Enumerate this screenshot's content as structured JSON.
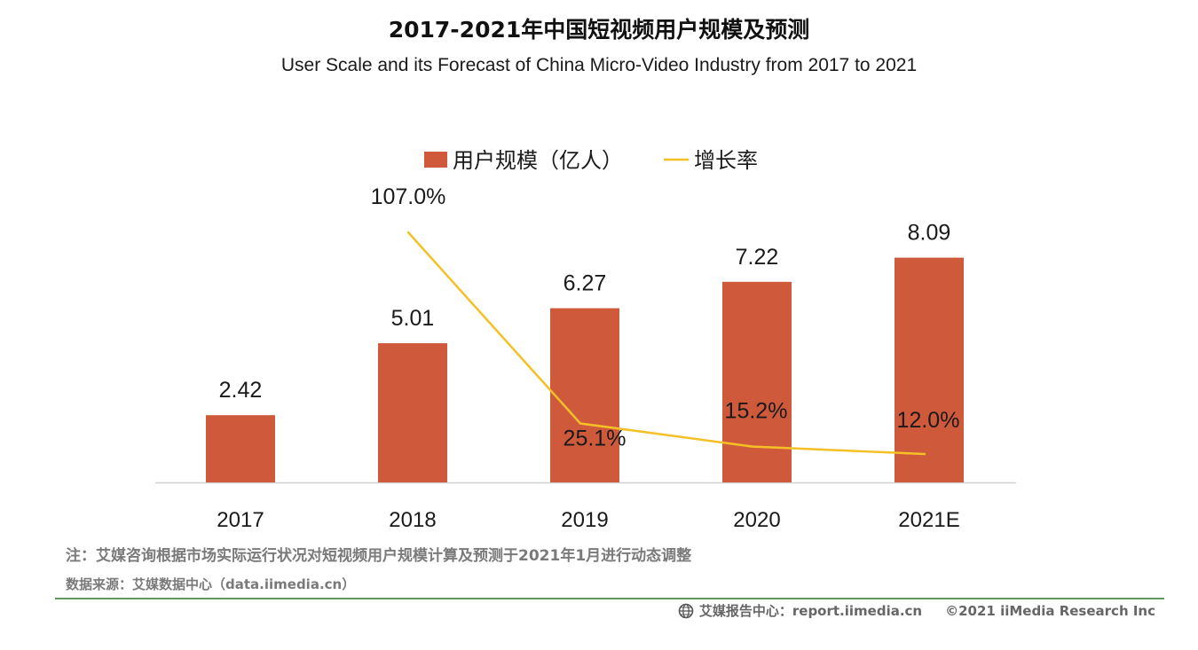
{
  "header": {
    "title": "2017-2021年中国短视频用户规模及预测",
    "subtitle": "User Scale and its Forecast of China Micro-Video Industry from 2017 to 2021"
  },
  "chart_data": {
    "type": "bar",
    "title": "2017-2021年中国短视频用户规模及预测",
    "subtitle": "User Scale and its Forecast of China Micro-Video Industry from 2017 to 2021",
    "categories": [
      "2017",
      "2018",
      "2019",
      "2020",
      "2021E"
    ],
    "series": [
      {
        "name": "用户规模（亿人）",
        "type": "bar",
        "values": [
          2.42,
          5.01,
          6.27,
          7.22,
          8.09
        ],
        "labels": [
          "2.42",
          "5.01",
          "6.27",
          "7.22",
          "8.09"
        ],
        "color": "#cf5a3b"
      },
      {
        "name": "增长率",
        "type": "line",
        "values": [
          null,
          107.0,
          25.1,
          15.2,
          12.0
        ],
        "labels": [
          null,
          "107.0%",
          "25.1%",
          "15.2%",
          "12.0%"
        ],
        "color": "#f5c026"
      }
    ],
    "ylim_bar": [
      0,
      10
    ],
    "ylim_line": [
      0,
      120
    ],
    "legend_position": "top-center",
    "grid": false
  },
  "notes": {
    "note": "注：艾媒咨询根据市场实际运行状况对短视频用户规模计算及预测于2021年1月进行动态调整",
    "source": "数据来源：艾媒数据中心（data.iimedia.cn）"
  },
  "footer": {
    "report": "艾媒报告中心：report.iimedia.cn",
    "copyright": "©2021  iiMedia Research  Inc"
  },
  "colors": {
    "bar": "#cf5a3b",
    "line": "#f5c026",
    "axis": "#d0d0d0",
    "divider": "#5e9562"
  }
}
